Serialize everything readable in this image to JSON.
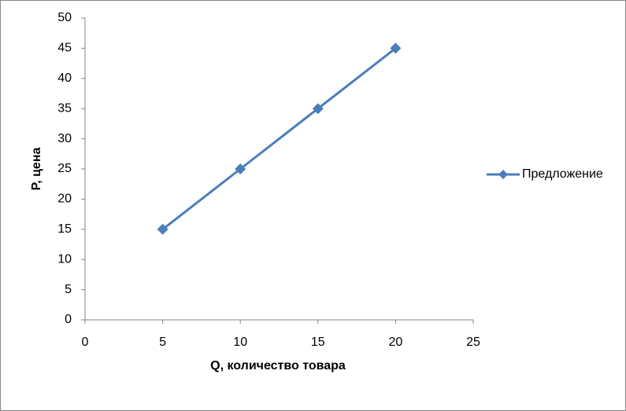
{
  "chart_data": {
    "type": "line",
    "x_label": "Q, количество товара",
    "y_label": "P, цена",
    "series": [
      {
        "name": "Предложение",
        "color": "#4a7ebb",
        "x": [
          5,
          10,
          15,
          20
        ],
        "values": [
          15,
          25,
          35,
          45
        ]
      }
    ],
    "xlim": [
      0,
      25
    ],
    "xticks": [
      0,
      5,
      10,
      15,
      20,
      25
    ],
    "ylim": [
      0,
      50
    ],
    "yticks": [
      0,
      5,
      10,
      15,
      20,
      25,
      30,
      35,
      40,
      45,
      50
    ],
    "grid": false,
    "legend": "right",
    "marker": "diamond"
  }
}
